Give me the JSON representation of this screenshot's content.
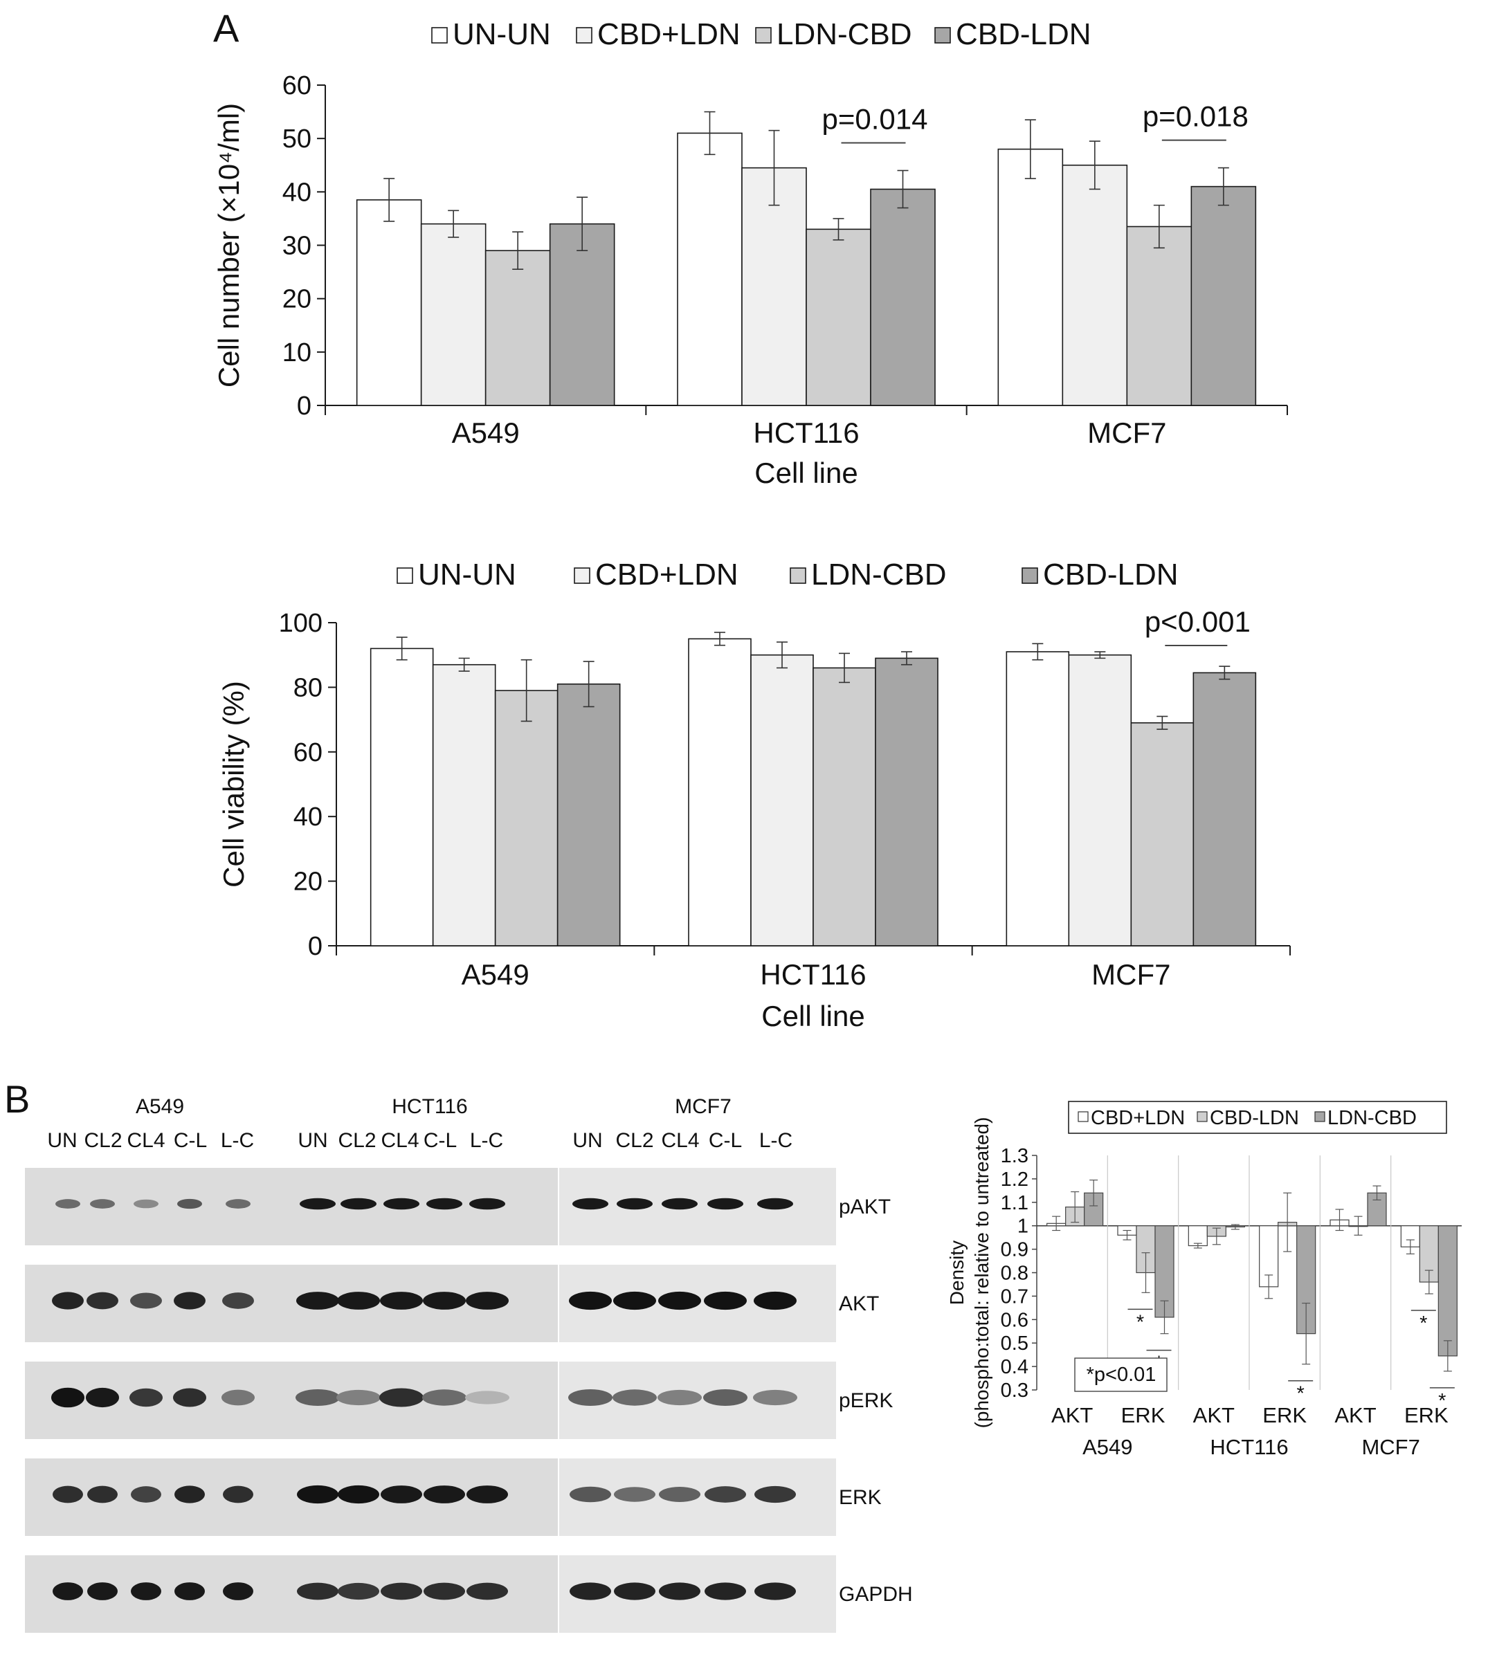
{
  "panel_labels": {
    "a": "A",
    "b": "B"
  },
  "colors": {
    "untreated": "#ffffff",
    "cbd_plus_ldn": "#f0f0f0",
    "ldn_cbd": "#cfcfcf",
    "cbd_ldn": "#a6a6a6",
    "stroke": "#1a1a1a"
  },
  "legend_a": [
    "UN-UN",
    "CBD+LDN",
    "LDN-CBD",
    "CBD-LDN"
  ],
  "chart_data": [
    {
      "type": "bar",
      "title": "",
      "xlabel": "Cell line",
      "ylabel": "Cell number (×10⁴/ml)",
      "ylim": [
        0,
        60
      ],
      "yticks": [
        0,
        10,
        20,
        30,
        40,
        50,
        60
      ],
      "categories": [
        "A549",
        "HCT116",
        "MCF7"
      ],
      "legend_placement": "top",
      "series": [
        {
          "name": "UN-UN",
          "values": [
            38.5,
            51,
            48
          ],
          "errors": [
            4,
            4,
            5.5
          ]
        },
        {
          "name": "CBD+LDN",
          "values": [
            34,
            44.5,
            45
          ],
          "errors": [
            2.5,
            7,
            4.5
          ]
        },
        {
          "name": "LDN-CBD",
          "values": [
            29,
            33,
            33.5
          ],
          "errors": [
            3.5,
            2,
            4
          ]
        },
        {
          "name": "CBD-LDN",
          "values": [
            34,
            40.5,
            41
          ],
          "errors": [
            5,
            3.5,
            3.5
          ]
        }
      ],
      "annotations": [
        {
          "text": "p=0.014",
          "category": 1
        },
        {
          "text": "p=0.018",
          "category": 2
        }
      ]
    },
    {
      "type": "bar",
      "title": "",
      "xlabel": "Cell line",
      "ylabel": "Cell viability (%)",
      "ylim": [
        0,
        100
      ],
      "yticks": [
        0,
        20,
        40,
        60,
        80,
        100
      ],
      "categories": [
        "A549",
        "HCT116",
        "MCF7"
      ],
      "legend_placement": "top",
      "series": [
        {
          "name": "UN-UN",
          "values": [
            92,
            95,
            91
          ],
          "errors": [
            3.5,
            2,
            2.5
          ]
        },
        {
          "name": "CBD+LDN",
          "values": [
            87,
            90,
            90
          ],
          "errors": [
            2,
            4,
            1
          ]
        },
        {
          "name": "LDN-CBD",
          "values": [
            79,
            86,
            69
          ],
          "errors": [
            9.5,
            4.5,
            2
          ]
        },
        {
          "name": "CBD-LDN",
          "values": [
            81,
            89,
            84.5
          ],
          "errors": [
            7,
            2,
            2
          ]
        }
      ],
      "annotations": [
        {
          "text": "p<0.001",
          "category": 2
        }
      ]
    },
    {
      "type": "bar",
      "title": "",
      "xlabel": "",
      "ylabel": "Density",
      "ylabel2": "(phospho:total: relative to untreated)",
      "ylim": [
        0.3,
        1.3
      ],
      "yticks": [
        0.3,
        0.4,
        0.5,
        0.6,
        0.7,
        0.8,
        0.9,
        1,
        1.1,
        1.2,
        1.3
      ],
      "baseline": 1,
      "categories": [
        "AKT",
        "ERK",
        "AKT",
        "ERK",
        "AKT",
        "ERK"
      ],
      "groups": [
        "A549",
        "HCT116",
        "MCF7"
      ],
      "legend_placement": "top",
      "series": [
        {
          "name": "CBD+LDN",
          "values": [
            1.01,
            0.96,
            0.915,
            0.74,
            1.025,
            0.91
          ],
          "errors": [
            0.03,
            0.02,
            0.01,
            0.05,
            0.045,
            0.03
          ]
        },
        {
          "name": "CBD-LDN",
          "values": [
            1.08,
            0.8,
            0.955,
            1.015,
            1.0,
            0.76
          ],
          "errors": [
            0.065,
            0.085,
            0.035,
            0.125,
            0.04,
            0.05
          ]
        },
        {
          "name": "LDN-CBD",
          "values": [
            1.14,
            0.61,
            0.995,
            0.54,
            1.14,
            0.445
          ],
          "errors": [
            0.055,
            0.07,
            0.01,
            0.13,
            0.03,
            0.065
          ]
        }
      ],
      "significance_marker": "*",
      "note": "*p<0.01"
    }
  ],
  "blot": {
    "groups": [
      {
        "name": "A549",
        "lanes": [
          "UN",
          "CL2",
          "CL4",
          "C-L",
          "L-C"
        ]
      },
      {
        "name": "HCT116",
        "lanes": [
          "UN",
          "CL2",
          "CL4",
          "C-L",
          "L-C"
        ]
      },
      {
        "name": "MCF7",
        "lanes": [
          "UN",
          "CL2",
          "CL4",
          "C-L",
          "L-C"
        ]
      }
    ],
    "proteins": [
      "pAKT",
      "AKT",
      "pERK",
      "ERK",
      "GAPDH"
    ]
  }
}
